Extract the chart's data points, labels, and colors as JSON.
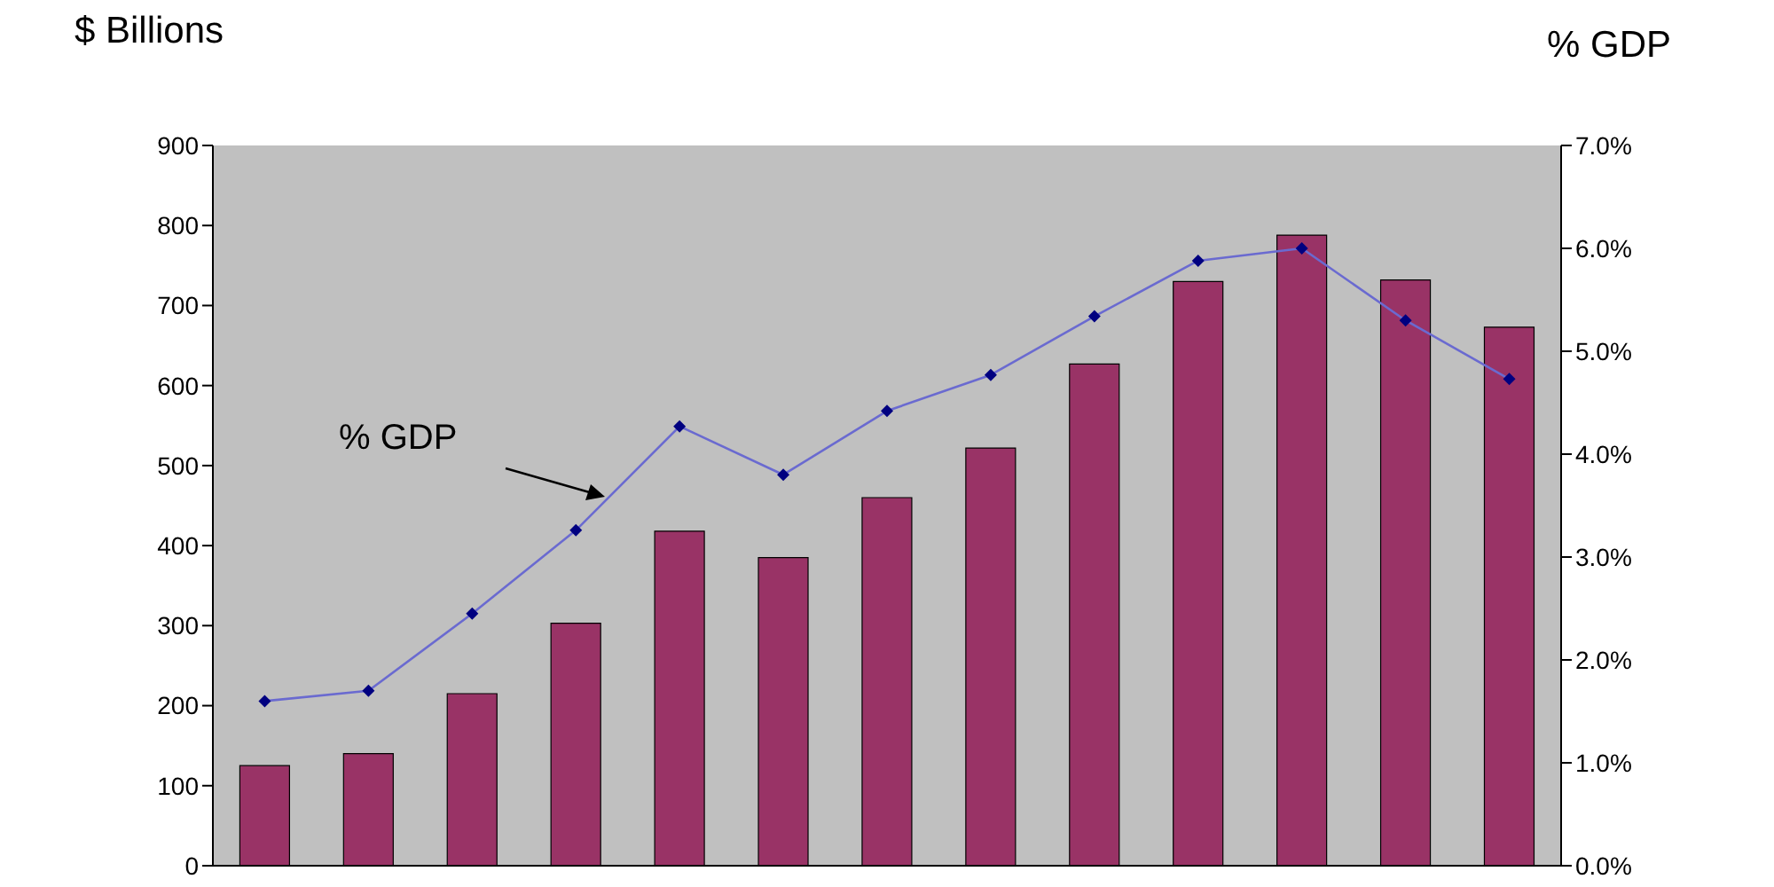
{
  "chart_data": {
    "type": "bar",
    "ylabel": "$ Billions",
    "y2label": "% GDP",
    "categories": [
      null,
      null,
      null,
      null,
      null,
      null,
      null,
      null,
      null,
      null,
      null,
      null,
      null
    ],
    "series": [
      {
        "color": "#993366",
        "values": [
          125,
          140,
          215,
          303,
          418,
          385,
          460,
          522,
          627,
          730,
          788,
          732,
          673
        ]
      },
      {
        "type": "line",
        "axis": "y2",
        "color": "#000080",
        "values": [
          1.6,
          1.7,
          2.45,
          3.26,
          4.27,
          3.8,
          4.42,
          4.77,
          5.34,
          5.88,
          6.0,
          5.3,
          4.73
        ]
      }
    ],
    "ylim": [
      0,
      900
    ],
    "yticks": [
      0,
      100,
      200,
      300,
      400,
      500,
      600,
      700,
      800,
      900
    ],
    "y2lim": [
      0,
      7
    ],
    "y2ticks": [
      {
        "value": 0,
        "label": "0.0%"
      },
      {
        "value": 1,
        "label": "1.0%"
      },
      {
        "value": 2,
        "label": "2.0%"
      },
      {
        "value": 3,
        "label": "3.0%"
      },
      {
        "value": 4,
        "label": "4.0%"
      },
      {
        "value": 5,
        "label": "5.0%"
      },
      {
        "value": 6,
        "label": "6.0%"
      },
      {
        "value": 7,
        "label": "7.0%"
      }
    ],
    "marker": "diamond",
    "line_style": "solid",
    "grid": false,
    "tick_labels": "y",
    "annotations": [
      "% GDP"
    ]
  }
}
